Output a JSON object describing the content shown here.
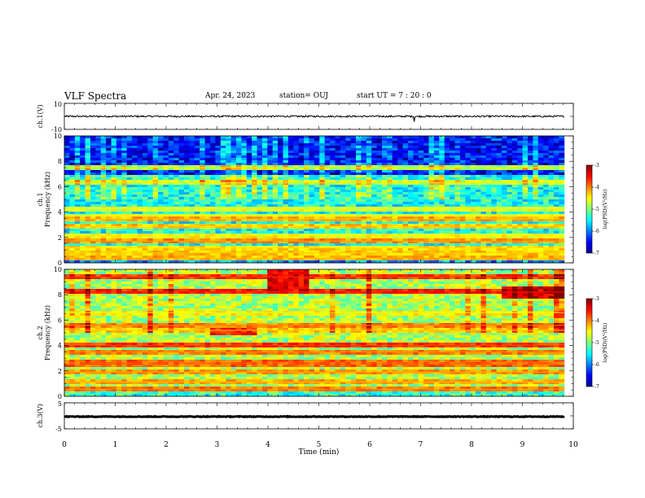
{
  "header": {
    "title": "VLF Spectra",
    "date": "Apr. 24, 2023",
    "station": "station= OUJ",
    "start": "start  UT =   7 : 20 : 0"
  },
  "chart_data": [
    {
      "type": "line",
      "panel": "ch1-waveform",
      "ylabel": "ch.1(V)",
      "ylim": [
        -10,
        10
      ],
      "ytick_labels": [
        "10",
        "-10"
      ],
      "signal_level": 0
    },
    {
      "type": "heatmap",
      "panel": "ch1-spectrogram",
      "ylabel": "ch.1\nFrequency (kHz)",
      "ylim": [
        0,
        10
      ],
      "yticks": [
        "0",
        "2",
        "4",
        "6",
        "8",
        "10"
      ],
      "colorbar": {
        "label": "log(PSD)(V²/Hz)",
        "range": [
          -7,
          -3
        ],
        "ticks": [
          "-3",
          "-4",
          "-5",
          "-6",
          "-7"
        ]
      },
      "base_level": -5.4,
      "bands": [
        {
          "f": 0.3,
          "v": -4.2
        },
        {
          "f": 0.8,
          "v": -4.3
        },
        {
          "f": 1.2,
          "v": -4.4
        },
        {
          "f": 1.7,
          "v": -4.1
        },
        {
          "f": 2.2,
          "v": -4.5
        },
        {
          "f": 2.8,
          "v": -4.3
        },
        {
          "f": 3.4,
          "v": -4.2
        },
        {
          "f": 3.7,
          "v": -4.6
        },
        {
          "f": 4.3,
          "v": -4.6
        },
        {
          "f": 6.3,
          "v": -4.7
        },
        {
          "f": 7.5,
          "v": -4.8
        }
      ]
    },
    {
      "type": "heatmap",
      "panel": "ch2-spectrogram",
      "ylabel": "ch.2\nFrequency (kHz)",
      "ylim": [
        0,
        10
      ],
      "yticks": [
        "0",
        "2",
        "4",
        "6",
        "8",
        "10"
      ],
      "colorbar": {
        "label": "log(PSD)(V²/Hz)",
        "range": [
          -7,
          -3
        ],
        "ticks": [
          "-3",
          "-4",
          "-5",
          "-6",
          "-7"
        ]
      },
      "base_level": -4.8,
      "bands": [
        {
          "f": 0.5,
          "v": -4.0
        },
        {
          "f": 1.1,
          "v": -4.2
        },
        {
          "f": 1.9,
          "v": -4.1
        },
        {
          "f": 2.6,
          "v": -3.9
        },
        {
          "f": 3.5,
          "v": -4.0
        },
        {
          "f": 4.0,
          "v": -3.7
        },
        {
          "f": 5.2,
          "v": -4.3
        },
        {
          "f": 5.6,
          "v": -4.0
        },
        {
          "f": 6.6,
          "v": -4.5
        },
        {
          "f": 8.2,
          "v": -3.6
        },
        {
          "f": 9.4,
          "v": -3.7
        }
      ],
      "events": [
        {
          "t0": 4.0,
          "t1": 4.8,
          "f0": 8.3,
          "f1": 10.0,
          "v": -3.4
        },
        {
          "t0": 8.6,
          "t1": 9.8,
          "f0": 7.7,
          "f1": 8.6,
          "v": -3.3
        },
        {
          "t0": 2.9,
          "t1": 3.8,
          "f0": 4.8,
          "f1": 5.4,
          "v": -3.6
        }
      ]
    },
    {
      "type": "line",
      "panel": "ch3-waveform",
      "ylabel": "ch.3(V)",
      "ylim": [
        -5,
        5
      ],
      "ytick_labels": [
        "5",
        "-5"
      ],
      "signal_level": -0.3
    }
  ],
  "xaxis": {
    "label": "Time (min)",
    "xlim": [
      0,
      10
    ],
    "ticks": [
      "0",
      "1",
      "2",
      "3",
      "4",
      "5",
      "6",
      "7",
      "8",
      "9",
      "10"
    ],
    "data_end": 9.82
  }
}
